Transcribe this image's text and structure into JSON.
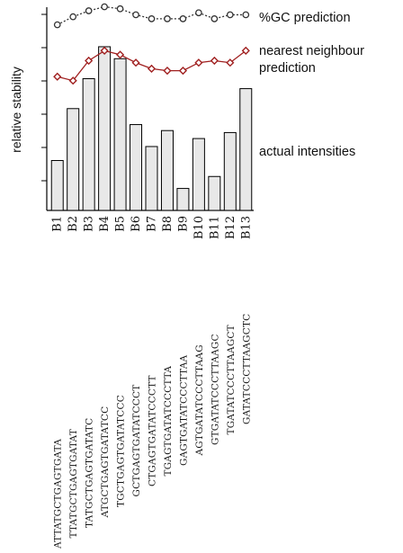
{
  "chart_data": {
    "type": "bar",
    "title": "",
    "xlabel": "",
    "ylabel": "relative stability",
    "ylim": [
      0,
      10
    ],
    "grid": false,
    "categories": [
      "B1",
      "B2",
      "B3",
      "B4",
      "B5",
      "B6",
      "B7",
      "B8",
      "B9",
      "B10",
      "B11",
      "B12",
      "B13"
    ],
    "sequences": [
      "ATTATGCTGAGTGATA",
      "TTATGCTGAGTGATAT",
      "TATGCTGAGTGATATC",
      "ATGCTGAGTGATATCC",
      "TGCTGAGTGATATCCC",
      "GCTGAGTGATATCCCT",
      "CTGAGTGATATCCCTT",
      "TGAGTGATATCCCTTA",
      "GAGTGATATCCCTTAA",
      "AGTGATATCCCTTAAG",
      "GTGATATCCCTTAAGC",
      "TGATATCCCTTAAGCT",
      "GATATCCCTTAAGCTC"
    ],
    "series": [
      {
        "name": "actual intensities",
        "kind": "bar",
        "values": [
          2.5,
          5.1,
          6.6,
          8.2,
          7.6,
          4.3,
          3.2,
          4.0,
          1.1,
          3.6,
          1.7,
          3.9,
          6.1
        ],
        "color": "#e8e8e8"
      },
      {
        "name": "nearest neighbour prediction",
        "kind": "line",
        "values": [
          6.7,
          6.5,
          7.5,
          8.0,
          7.8,
          7.4,
          7.1,
          7.0,
          7.0,
          7.4,
          7.5,
          7.4,
          8.0
        ],
        "color": "#a02020"
      },
      {
        "name": "%GC prediction",
        "kind": "line",
        "values": [
          9.3,
          9.7,
          10.0,
          10.2,
          10.1,
          9.8,
          9.6,
          9.6,
          9.6,
          9.9,
          9.6,
          9.8,
          9.8
        ],
        "color": "#333333"
      }
    ],
    "legend": {
      "gc_label": "%GC prediction",
      "nn_label_line1": "nearest neighbour",
      "nn_label_line2": "prediction",
      "actual_label": "actual intensities",
      "placement": "right"
    }
  }
}
